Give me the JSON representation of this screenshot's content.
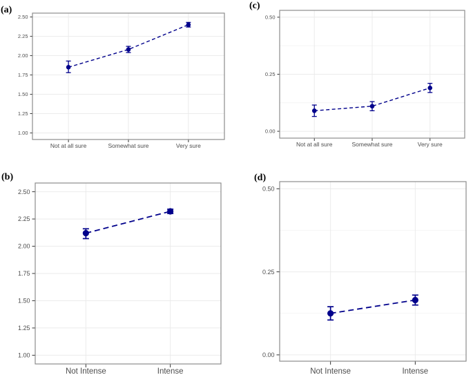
{
  "style": {
    "point_color": "#00008B",
    "line_color": "#00008B",
    "major_grid_color": "#EBEBEB",
    "minor_grid_color": "#F2F2F2",
    "panel_border_color": "#8C8C8C",
    "tick_mark_color": "#333333",
    "tick_label_color": "#4D4D4D",
    "panel_label_color": "#000000",
    "background": "#FFFFFF"
  },
  "chart_data": [
    {
      "id": "a",
      "label": "(a)",
      "type": "line",
      "title": "",
      "xlabel": "",
      "ylabel": "",
      "categories": [
        "Not at all sure",
        "Somewhat sure",
        "Very sure"
      ],
      "values": [
        1.85,
        2.08,
        2.4
      ],
      "error_low": [
        1.78,
        2.04,
        2.37
      ],
      "error_high": [
        1.93,
        2.12,
        2.43
      ],
      "yticks": [
        "1.00",
        "1.25",
        "1.50",
        "1.75",
        "2.00",
        "2.25",
        "2.50"
      ],
      "ylim": [
        0.915,
        2.55
      ],
      "minor_gridlines": false,
      "grid": true,
      "legend": "none",
      "line_style": "dashed",
      "error_bars": true
    },
    {
      "id": "c",
      "label": "(c)",
      "type": "line",
      "title": "",
      "xlabel": "",
      "ylabel": "",
      "categories": [
        "Not at all sure",
        "Somewhat sure",
        "Very sure"
      ],
      "values": [
        0.09,
        0.11,
        0.19
      ],
      "error_low": [
        0.065,
        0.09,
        0.17
      ],
      "error_high": [
        0.115,
        0.13,
        0.21
      ],
      "yticks": [
        "0.00",
        "0.25",
        "0.50"
      ],
      "ylim": [
        -0.03,
        0.53
      ],
      "minor_gridlines": true,
      "grid": true,
      "legend": "none",
      "line_style": "dashed",
      "error_bars": true
    },
    {
      "id": "b",
      "label": "(b)",
      "type": "line",
      "title": "",
      "xlabel": "",
      "ylabel": "",
      "categories": [
        "Not Intense",
        "Intense"
      ],
      "values": [
        2.12,
        2.32
      ],
      "error_low": [
        2.07,
        2.3
      ],
      "error_high": [
        2.16,
        2.34
      ],
      "yticks": [
        "1.00",
        "1.25",
        "1.50",
        "1.75",
        "2.00",
        "2.25",
        "2.50"
      ],
      "ylim": [
        0.92,
        2.58
      ],
      "minor_gridlines": false,
      "grid": true,
      "legend": "none",
      "line_style": "dashed",
      "error_bars": true
    },
    {
      "id": "d",
      "label": "(d)",
      "type": "line",
      "title": "",
      "xlabel": "",
      "ylabel": "",
      "categories": [
        "Not Intense",
        "Intense"
      ],
      "values": [
        0.125,
        0.165
      ],
      "error_low": [
        0.105,
        0.15
      ],
      "error_high": [
        0.145,
        0.18
      ],
      "yticks": [
        "0.00",
        "0.25",
        "0.50"
      ],
      "ylim": [
        -0.019,
        0.5215
      ],
      "minor_gridlines": true,
      "grid": true,
      "legend": "none",
      "line_style": "dashed",
      "error_bars": true
    }
  ]
}
